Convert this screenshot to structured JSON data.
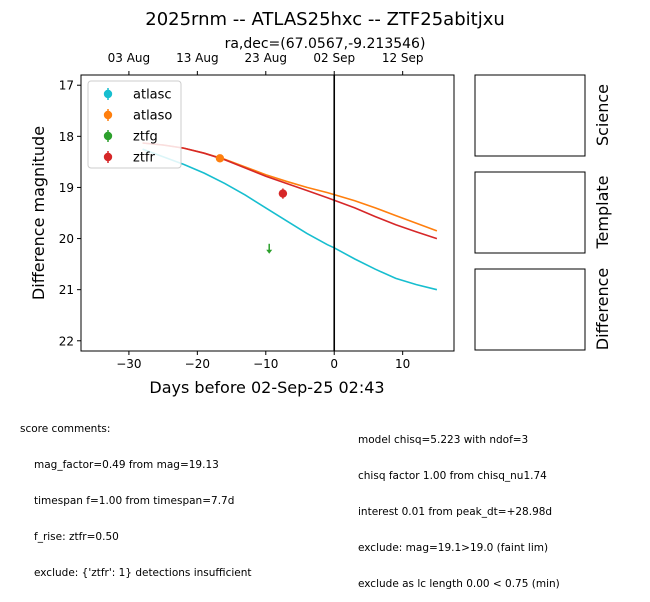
{
  "chart_data": {
    "type": "scatter",
    "title": "2025rnm -- ATLAS25hxc -- ZTF25abitjxu",
    "subtitle": "ra,dec=(67.0567,-9.213546)",
    "xlabel": "Days before 02-Sep-25 02:43",
    "ylabel": "Difference magnitude",
    "xlim": [
      -37,
      17.5
    ],
    "ylim": [
      22.2,
      16.8
    ],
    "x_ticks": [
      -30,
      -20,
      -10,
      0,
      10
    ],
    "x_tick_labels": [
      "−30",
      "−20",
      "−10",
      "0",
      "10"
    ],
    "y_ticks": [
      17,
      18,
      19,
      20,
      21,
      22
    ],
    "y_tick_labels": [
      "17",
      "18",
      "19",
      "20",
      "21",
      "22"
    ],
    "top_ticks": [
      -30,
      -20,
      -10,
      0,
      10
    ],
    "top_tick_labels": [
      "03 Aug",
      "13 Aug",
      "23 Aug",
      "02 Sep",
      "12 Sep"
    ],
    "vline_x": 0,
    "legend": [
      "atlasc",
      "atlaso",
      "ztfg",
      "ztfr"
    ],
    "legend_location": "top-left",
    "colors": {
      "atlasc": "#17becf",
      "atlaso": "#ff7f0e",
      "ztfg": "#2ca02c",
      "ztfr": "#d62728"
    },
    "model_curves": [
      {
        "name": "atlasc",
        "x": [
          -28,
          -25,
          -22,
          -19,
          -16,
          -13,
          -10,
          -7,
          -4,
          -1,
          0,
          3,
          6,
          9,
          12,
          15
        ],
        "y": [
          18.25,
          18.4,
          18.55,
          18.72,
          18.92,
          19.15,
          19.4,
          19.65,
          19.9,
          20.12,
          20.18,
          20.4,
          20.6,
          20.78,
          20.9,
          21.0
        ]
      },
      {
        "name": "atlaso",
        "x": [
          -28,
          -25,
          -22,
          -19,
          -16,
          -13,
          -10,
          -7,
          -4,
          -1,
          0,
          3,
          6,
          9,
          12,
          15
        ],
        "y": [
          18.13,
          18.17,
          18.23,
          18.33,
          18.45,
          18.6,
          18.75,
          18.88,
          19.0,
          19.1,
          19.14,
          19.26,
          19.4,
          19.55,
          19.7,
          19.85
        ]
      },
      {
        "name": "ztfr",
        "x": [
          -28,
          -25,
          -22,
          -19,
          -16,
          -13,
          -10,
          -7,
          -4,
          -1,
          0,
          3,
          6,
          9,
          12,
          15
        ],
        "y": [
          18.13,
          18.17,
          18.23,
          18.33,
          18.46,
          18.62,
          18.78,
          18.92,
          19.06,
          19.2,
          19.25,
          19.4,
          19.57,
          19.73,
          19.87,
          20.0
        ]
      }
    ],
    "points": [
      {
        "name": "atlaso",
        "x": -16.7,
        "y": 18.43,
        "yerr": 0.05,
        "marker": "circle"
      },
      {
        "name": "ztfr",
        "x": -7.5,
        "y": 19.12,
        "yerr": 0.1,
        "marker": "circle"
      },
      {
        "name": "ztfg",
        "x": -9.5,
        "y": 20.2,
        "marker": "down-arrow"
      }
    ],
    "side_panels": [
      "Science",
      "Template",
      "Difference"
    ]
  },
  "comments": {
    "left_header": "score comments:",
    "left_lines": [
      "mag_factor=0.49 from mag=19.13",
      "timespan f=1.00 from timespan=7.7d",
      "f_rise: ztfr=0.50",
      "exclude: {'ztfr': 1} detections insufficient"
    ],
    "right_lines": [
      "model chisq=5.223 with ndof=3",
      "chisq factor 1.00 from chisq_nu1.74",
      "interest 0.01 from peak_dt=+28.98d",
      "exclude: mag=19.1>19.0 (faint lim)",
      "exclude as lc length 0.00 < 0.75 (min)"
    ]
  }
}
